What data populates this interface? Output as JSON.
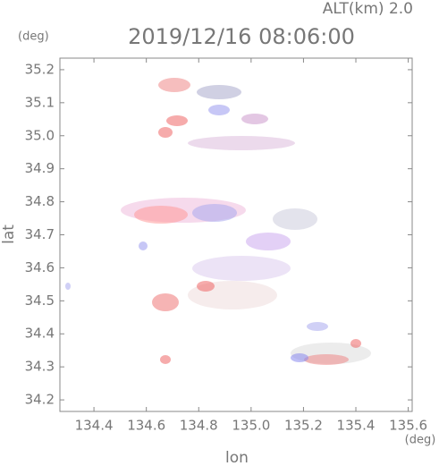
{
  "chart_data": {
    "type": "scatter",
    "title": "2019/12/16 08:06:00",
    "subtitle": "ALT(km) 2.0",
    "xlabel": "lon",
    "ylabel": "lat",
    "x_unit": "(deg)",
    "y_unit": "(deg)",
    "xlim": [
      134.27,
      135.615
    ],
    "ylim": [
      34.165,
      35.235
    ],
    "xticks": [
      134.4,
      134.6,
      134.8,
      {
        "value": 135,
        "label": "135.0"
      },
      135.2,
      135.4,
      135.6
    ],
    "yticks": [
      34.2,
      34.3,
      34.4,
      34.5,
      34.6,
      34.7,
      34.8,
      34.9,
      {
        "value": 35,
        "label": "35.0"
      },
      35.1,
      35.2
    ]
  }
}
